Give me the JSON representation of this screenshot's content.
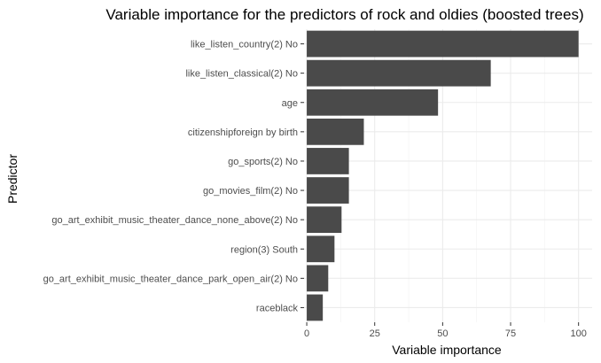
{
  "chart_data": {
    "type": "bar",
    "orientation": "horizontal",
    "title": "Variable importance for the predictors of rock and oldies (boosted trees)",
    "xlabel": "Variable importance",
    "ylabel": "Predictor",
    "categories": [
      "like_listen_country(2) No",
      "like_listen_classical(2) No",
      "age",
      "citizenshipforeign by birth",
      "go_sports(2) No",
      "go_movies_film(2) No",
      "go_art_exhibit_music_theater_dance_none_above(2) No",
      "region(3) South",
      "go_art_exhibit_music_theater_dance_park_open_air(2) No",
      "raceblack"
    ],
    "values": [
      100,
      67.7,
      48.3,
      21.0,
      15.5,
      15.5,
      12.8,
      10.2,
      7.9,
      5.9
    ],
    "xlim": [
      -1,
      105
    ],
    "xticks": [
      0,
      25,
      50,
      75,
      100
    ],
    "xtick_labels": [
      "0",
      "25",
      "50",
      "75",
      "100"
    ],
    "grid": true,
    "bar_color": "#4a4a4a",
    "background_color": "#ffffff",
    "grid_color": "#ebebeb"
  }
}
